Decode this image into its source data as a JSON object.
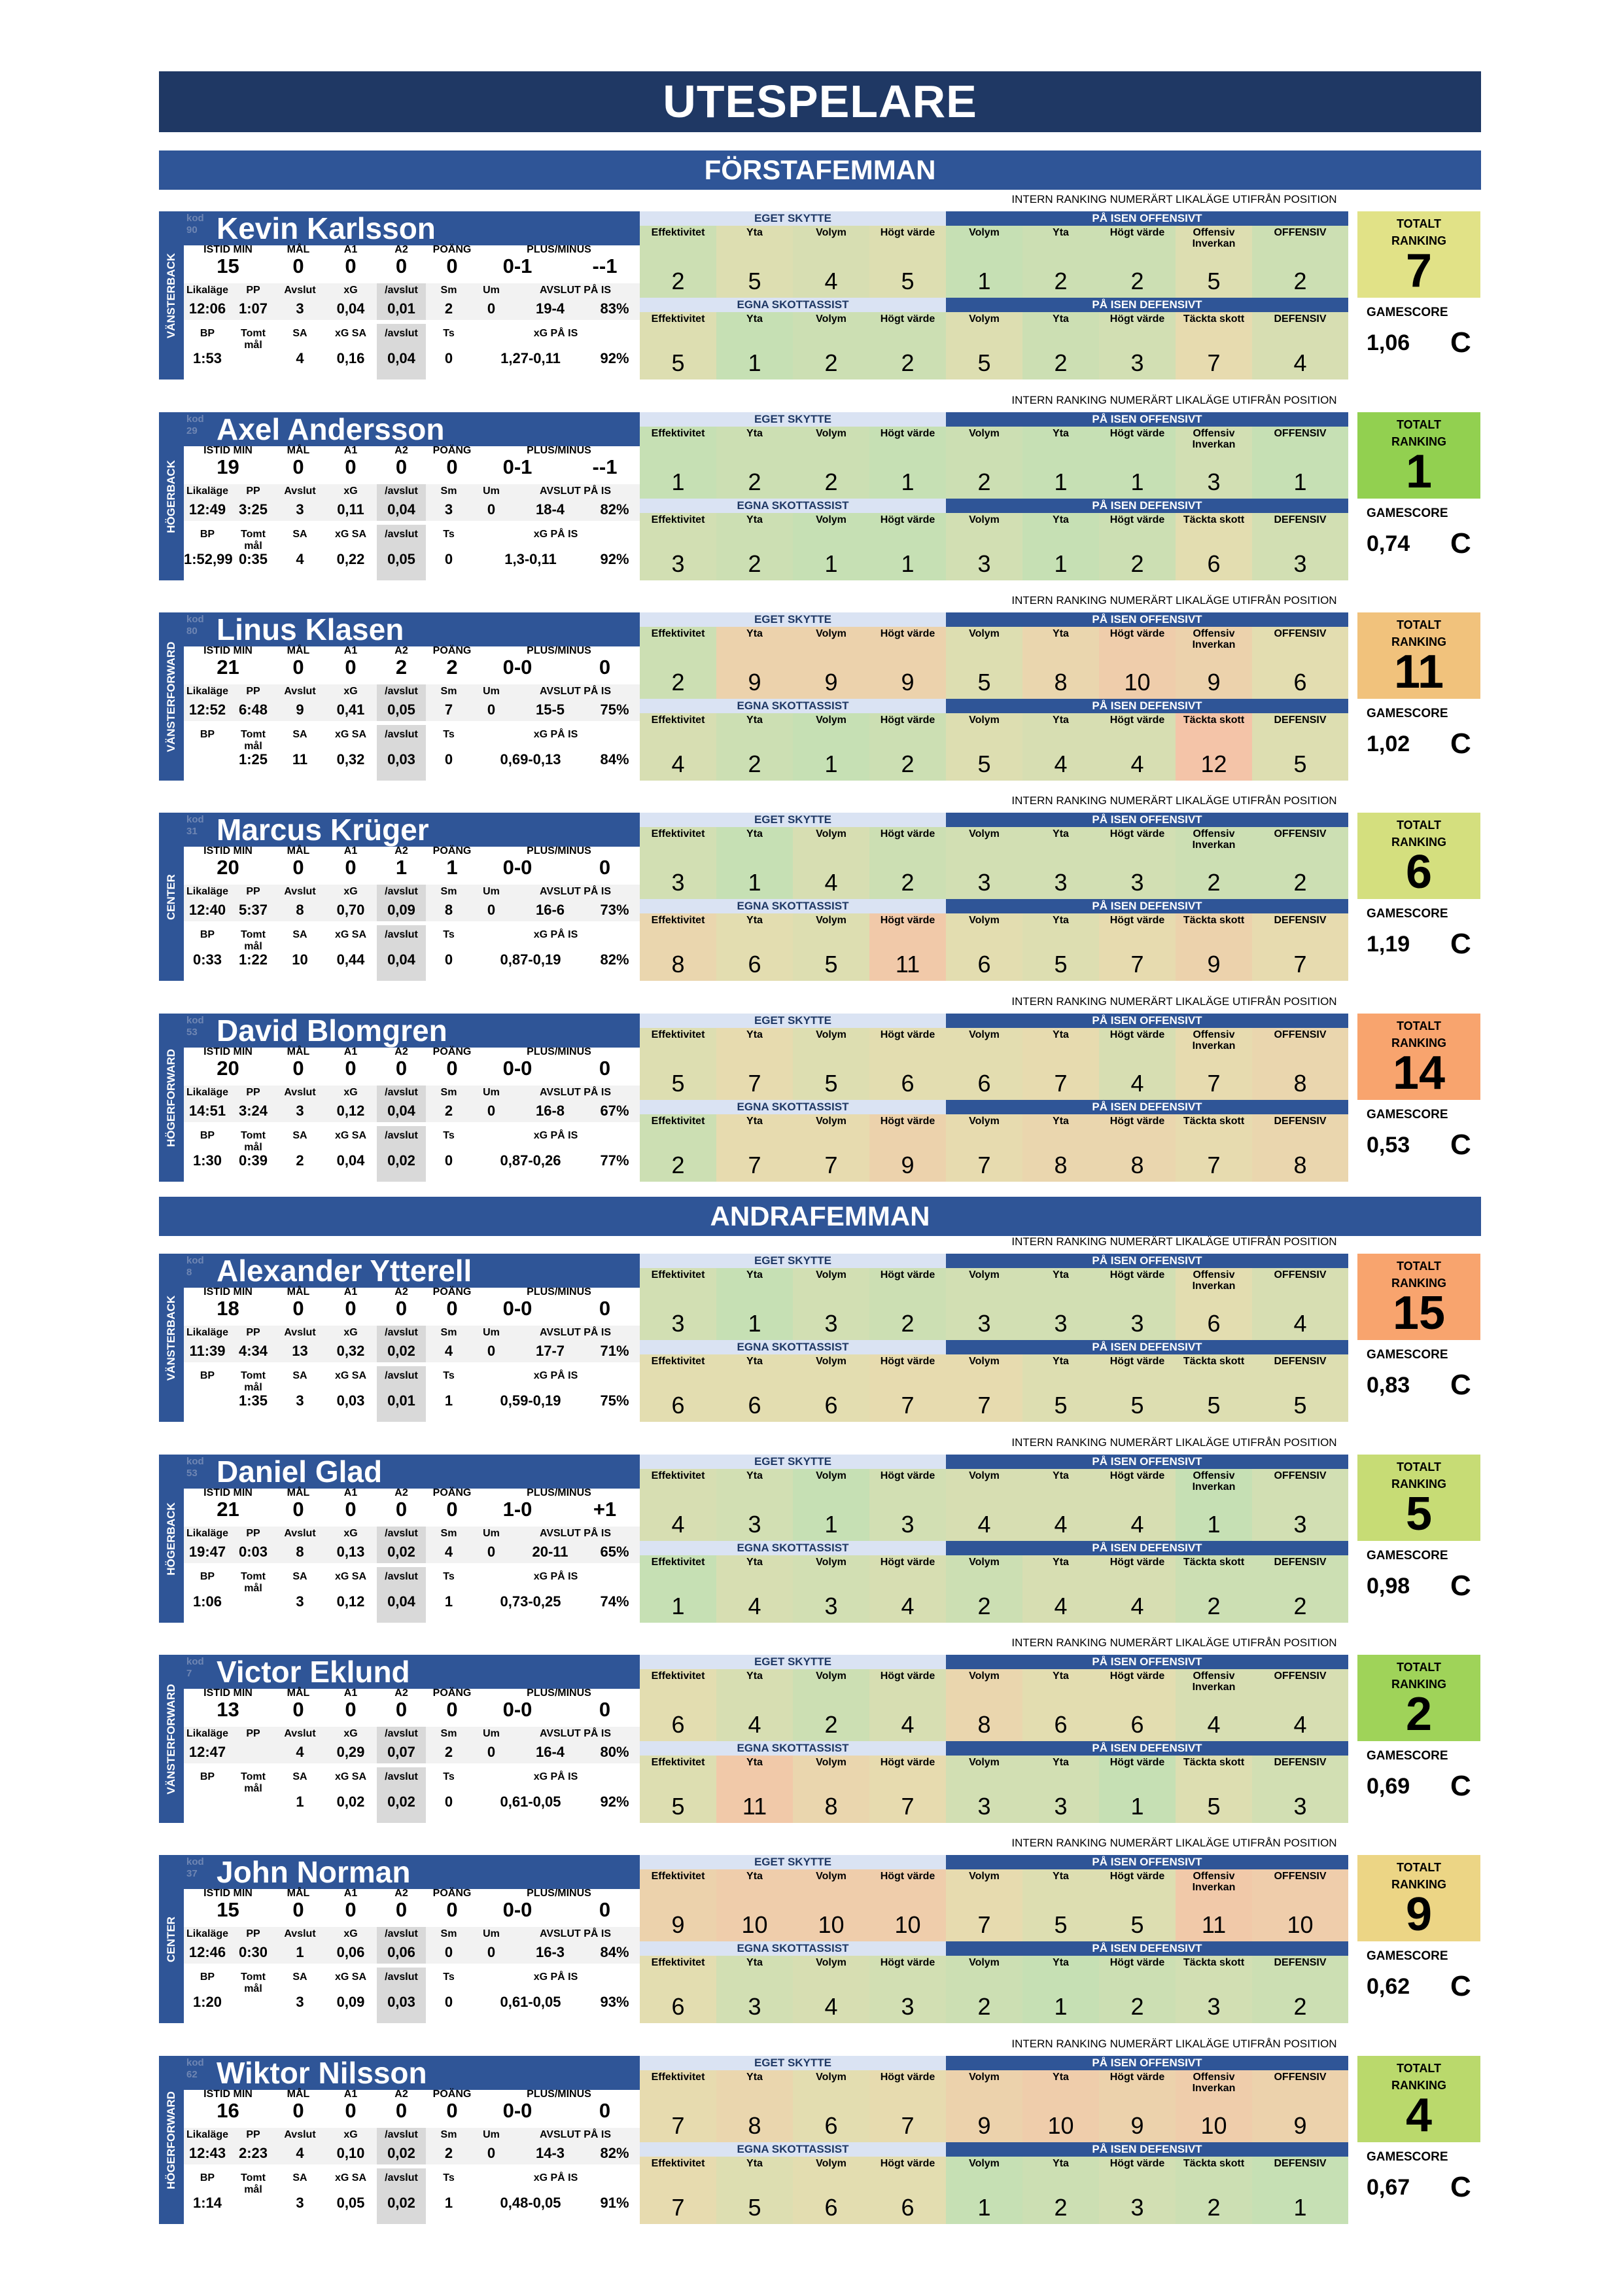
{
  "title": "UTESPELARE",
  "sections": [
    "FÖRSTAFEMMAN",
    "ANDRAFEMMAN"
  ],
  "labels": {
    "ranking_header": "INTERN RANKING NUMERÄRT LIKALÄGE UTIFRÅN POSITION",
    "eget_skytte": "EGET SKYTTE",
    "egna_skottassist": "EGNA SKOTTASSIST",
    "pa_isen_offensivt": "PÅ ISEN OFFENSIVT",
    "pa_isen_defensivt": "PÅ ISEN DEFENSIVT",
    "totalt": "TOTALT",
    "ranking": "RANKING",
    "gamescore": "GAMESCORE",
    "r1": [
      "ISTID MIN",
      "MÅL",
      "A1",
      "A2",
      "POÄNG",
      "PLUS/MINUS"
    ],
    "r2": [
      "Likaläge",
      "PP",
      "Avslut",
      "xG",
      "/avslut",
      "Sm",
      "Um",
      "AVSLUT PÅ IS"
    ],
    "r3": [
      "BP",
      "Tomt mål",
      "SA",
      "xG SA",
      "/avslut",
      "Ts",
      "xG PÅ IS"
    ],
    "off_cols": [
      "Effektivitet",
      "Yta",
      "Volym",
      "Högt värde",
      "Volym",
      "Yta",
      "Högt värde",
      "Offensiv Inverkan",
      "OFFENSIV"
    ],
    "def_cols": [
      "Effektivitet",
      "Yta",
      "Volym",
      "Högt värde",
      "Volym",
      "Yta",
      "Högt värde",
      "Täckta skott",
      "DEFENSIV"
    ]
  },
  "colors": {
    "header_dark": "#1f3864",
    "header_mid": "#2f5597",
    "header_light": "#dae3f3"
  },
  "players": [
    {
      "pos": "VÄNSTERBACK",
      "name": "Kevin Karlsson",
      "ghost": [
        "kod",
        "90"
      ],
      "istid": "15",
      "mal": "0",
      "a1": "0",
      "a2": "0",
      "poang": "0",
      "pm": "0-1",
      "pmd": "--1",
      "lik": "12:06",
      "pp": "1:07",
      "avslut": "3",
      "xg": "0,04",
      "xga": "0,01",
      "sm": "2",
      "um": "0",
      "api": "19-4",
      "apip": "83%",
      "bp": "1:53",
      "tomt": "",
      "sa": "4",
      "xgsa": "0,16",
      "xgsaa": "0,04",
      "ts": "0",
      "xgpi": "1,27-0,11",
      "xgpip": "92%",
      "off": [
        "2",
        "5",
        "4",
        "5",
        "1",
        "2",
        "2",
        "5",
        "2"
      ],
      "def": [
        "5",
        "1",
        "2",
        "2",
        "5",
        "2",
        "3",
        "7",
        "4"
      ],
      "total": "7",
      "gamescore": "1,06",
      "grade": "C"
    },
    {
      "pos": "HÖGERBACK",
      "name": "Axel Andersson",
      "ghost": [
        "kod",
        "29"
      ],
      "istid": "19",
      "mal": "0",
      "a1": "0",
      "a2": "0",
      "poang": "0",
      "pm": "0-1",
      "pmd": "--1",
      "lik": "12:49",
      "pp": "3:25",
      "avslut": "3",
      "xg": "0,11",
      "xga": "0,04",
      "sm": "3",
      "um": "0",
      "api": "18-4",
      "apip": "82%",
      "bp": "1:52,99",
      "tomt": "0:35",
      "sa": "4",
      "xgsa": "0,22",
      "xgsaa": "0,05",
      "ts": "0",
      "xgpi": "1,3-0,11",
      "xgpip": "92%",
      "off": [
        "1",
        "2",
        "2",
        "1",
        "2",
        "1",
        "1",
        "3",
        "1"
      ],
      "def": [
        "3",
        "2",
        "1",
        "1",
        "3",
        "1",
        "2",
        "6",
        "3"
      ],
      "total": "1",
      "gamescore": "0,74",
      "grade": "C"
    },
    {
      "pos": "VÄNSTERFORWARD",
      "name": "Linus Klasen",
      "ghost": [
        "kod",
        "80"
      ],
      "istid": "21",
      "mal": "0",
      "a1": "0",
      "a2": "2",
      "poang": "2",
      "pm": "0-0",
      "pmd": "0",
      "lik": "12:52",
      "pp": "6:48",
      "avslut": "9",
      "xg": "0,41",
      "xga": "0,05",
      "sm": "7",
      "um": "0",
      "api": "15-5",
      "apip": "75%",
      "bp": "",
      "tomt": "1:25",
      "sa": "11",
      "xgsa": "0,32",
      "xgsaa": "0,03",
      "ts": "0",
      "xgpi": "0,69-0,13",
      "xgpip": "84%",
      "off": [
        "2",
        "9",
        "9",
        "9",
        "5",
        "8",
        "10",
        "9",
        "6"
      ],
      "def": [
        "4",
        "2",
        "1",
        "2",
        "5",
        "4",
        "4",
        "12",
        "5"
      ],
      "total": "11",
      "gamescore": "1,02",
      "grade": "C"
    },
    {
      "pos": "CENTER",
      "name": "Marcus Krüger",
      "ghost": [
        "kod",
        "31"
      ],
      "istid": "20",
      "mal": "0",
      "a1": "0",
      "a2": "1",
      "poang": "1",
      "pm": "0-0",
      "pmd": "0",
      "lik": "12:40",
      "pp": "5:37",
      "avslut": "8",
      "xg": "0,70",
      "xga": "0,09",
      "sm": "8",
      "um": "0",
      "api": "16-6",
      "apip": "73%",
      "bp": "0:33",
      "tomt": "1:22",
      "sa": "10",
      "xgsa": "0,44",
      "xgsaa": "0,04",
      "ts": "0",
      "xgpi": "0,87-0,19",
      "xgpip": "82%",
      "off": [
        "3",
        "1",
        "4",
        "2",
        "3",
        "3",
        "3",
        "2",
        "2"
      ],
      "def": [
        "8",
        "6",
        "5",
        "11",
        "6",
        "5",
        "7",
        "9",
        "7"
      ],
      "total": "6",
      "gamescore": "1,19",
      "grade": "C"
    },
    {
      "pos": "HÖGERFORWARD",
      "name": "David Blomgren",
      "ghost": [
        "kod",
        "53"
      ],
      "istid": "20",
      "mal": "0",
      "a1": "0",
      "a2": "0",
      "poang": "0",
      "pm": "0-0",
      "pmd": "0",
      "lik": "14:51",
      "pp": "3:24",
      "avslut": "3",
      "xg": "0,12",
      "xga": "0,04",
      "sm": "2",
      "um": "0",
      "api": "16-8",
      "apip": "67%",
      "bp": "1:30",
      "tomt": "0:39",
      "sa": "2",
      "xgsa": "0,04",
      "xgsaa": "0,02",
      "ts": "0",
      "xgpi": "0,87-0,26",
      "xgpip": "77%",
      "off": [
        "5",
        "7",
        "5",
        "6",
        "6",
        "7",
        "4",
        "7",
        "8"
      ],
      "def": [
        "2",
        "7",
        "7",
        "9",
        "7",
        "8",
        "8",
        "7",
        "8"
      ],
      "total": "14",
      "gamescore": "0,53",
      "grade": "C"
    },
    {
      "pos": "VÄNSTERBACK",
      "name": "Alexander Ytterell",
      "ghost": [
        "kod",
        "8"
      ],
      "istid": "18",
      "mal": "0",
      "a1": "0",
      "a2": "0",
      "poang": "0",
      "pm": "0-0",
      "pmd": "0",
      "lik": "11:39",
      "pp": "4:34",
      "avslut": "13",
      "xg": "0,32",
      "xga": "0,02",
      "sm": "4",
      "um": "0",
      "api": "17-7",
      "apip": "71%",
      "bp": "",
      "tomt": "1:35",
      "sa": "3",
      "xgsa": "0,03",
      "xgsaa": "0,01",
      "ts": "1",
      "xgpi": "0,59-0,19",
      "xgpip": "75%",
      "off": [
        "3",
        "1",
        "3",
        "2",
        "3",
        "3",
        "3",
        "6",
        "4"
      ],
      "def": [
        "6",
        "6",
        "6",
        "7",
        "7",
        "5",
        "5",
        "5",
        "5"
      ],
      "total": "15",
      "gamescore": "0,83",
      "grade": "C"
    },
    {
      "pos": "HÖGERBACK",
      "name": "Daniel Glad",
      "ghost": [
        "kod",
        "53"
      ],
      "istid": "21",
      "mal": "0",
      "a1": "0",
      "a2": "0",
      "poang": "0",
      "pm": "1-0",
      "pmd": "+1",
      "lik": "19:47",
      "pp": "0:03",
      "avslut": "8",
      "xg": "0,13",
      "xga": "0,02",
      "sm": "4",
      "um": "0",
      "api": "20-11",
      "apip": "65%",
      "bp": "1:06",
      "tomt": "",
      "sa": "3",
      "xgsa": "0,12",
      "xgsaa": "0,04",
      "ts": "1",
      "xgpi": "0,73-0,25",
      "xgpip": "74%",
      "off": [
        "4",
        "3",
        "1",
        "3",
        "4",
        "4",
        "4",
        "1",
        "3"
      ],
      "def": [
        "1",
        "4",
        "3",
        "4",
        "2",
        "4",
        "4",
        "2",
        "2"
      ],
      "total": "5",
      "gamescore": "0,98",
      "grade": "C"
    },
    {
      "pos": "VÄNSTERFORWARD",
      "name": "Victor Eklund",
      "ghost": [
        "kod",
        "7"
      ],
      "istid": "13",
      "mal": "0",
      "a1": "0",
      "a2": "0",
      "poang": "0",
      "pm": "0-0",
      "pmd": "0",
      "lik": "12:47",
      "pp": "",
      "avslut": "4",
      "xg": "0,29",
      "xga": "0,07",
      "sm": "2",
      "um": "0",
      "api": "16-4",
      "apip": "80%",
      "bp": "",
      "tomt": "",
      "sa": "1",
      "xgsa": "0,02",
      "xgsaa": "0,02",
      "ts": "0",
      "xgpi": "0,61-0,05",
      "xgpip": "92%",
      "off": [
        "6",
        "4",
        "2",
        "4",
        "8",
        "6",
        "6",
        "4",
        "4"
      ],
      "def": [
        "5",
        "11",
        "8",
        "7",
        "3",
        "3",
        "1",
        "5",
        "3"
      ],
      "total": "2",
      "gamescore": "0,69",
      "grade": "C"
    },
    {
      "pos": "CENTER",
      "name": "John Norman",
      "ghost": [
        "kod",
        "37"
      ],
      "istid": "15",
      "mal": "0",
      "a1": "0",
      "a2": "0",
      "poang": "0",
      "pm": "0-0",
      "pmd": "0",
      "lik": "12:46",
      "pp": "0:30",
      "avslut": "1",
      "xg": "0,06",
      "xga": "0,06",
      "sm": "0",
      "um": "0",
      "api": "16-3",
      "apip": "84%",
      "bp": "1:20",
      "tomt": "",
      "sa": "3",
      "xgsa": "0,09",
      "xgsaa": "0,03",
      "ts": "0",
      "xgpi": "0,61-0,05",
      "xgpip": "93%",
      "off": [
        "9",
        "10",
        "10",
        "10",
        "7",
        "5",
        "5",
        "11",
        "10"
      ],
      "def": [
        "6",
        "3",
        "4",
        "3",
        "2",
        "1",
        "2",
        "3",
        "2"
      ],
      "total": "9",
      "gamescore": "0,62",
      "grade": "C"
    },
    {
      "pos": "HÖGERFORWARD",
      "name": "Wiktor Nilsson",
      "ghost": [
        "kod",
        "62"
      ],
      "istid": "16",
      "mal": "0",
      "a1": "0",
      "a2": "0",
      "poang": "0",
      "pm": "0-0",
      "pmd": "0",
      "lik": "12:43",
      "pp": "2:23",
      "avslut": "4",
      "xg": "0,10",
      "xga": "0,02",
      "sm": "2",
      "um": "0",
      "api": "14-3",
      "apip": "82%",
      "bp": "1:14",
      "tomt": "",
      "sa": "3",
      "xgsa": "0,05",
      "xgsaa": "0,02",
      "ts": "1",
      "xgpi": "0,48-0,05",
      "xgpip": "91%",
      "off": [
        "7",
        "8",
        "6",
        "7",
        "9",
        "10",
        "9",
        "10",
        "9"
      ],
      "def": [
        "7",
        "5",
        "6",
        "6",
        "1",
        "2",
        "3",
        "2",
        "1"
      ],
      "total": "4",
      "gamescore": "0,67",
      "grade": "C"
    }
  ]
}
